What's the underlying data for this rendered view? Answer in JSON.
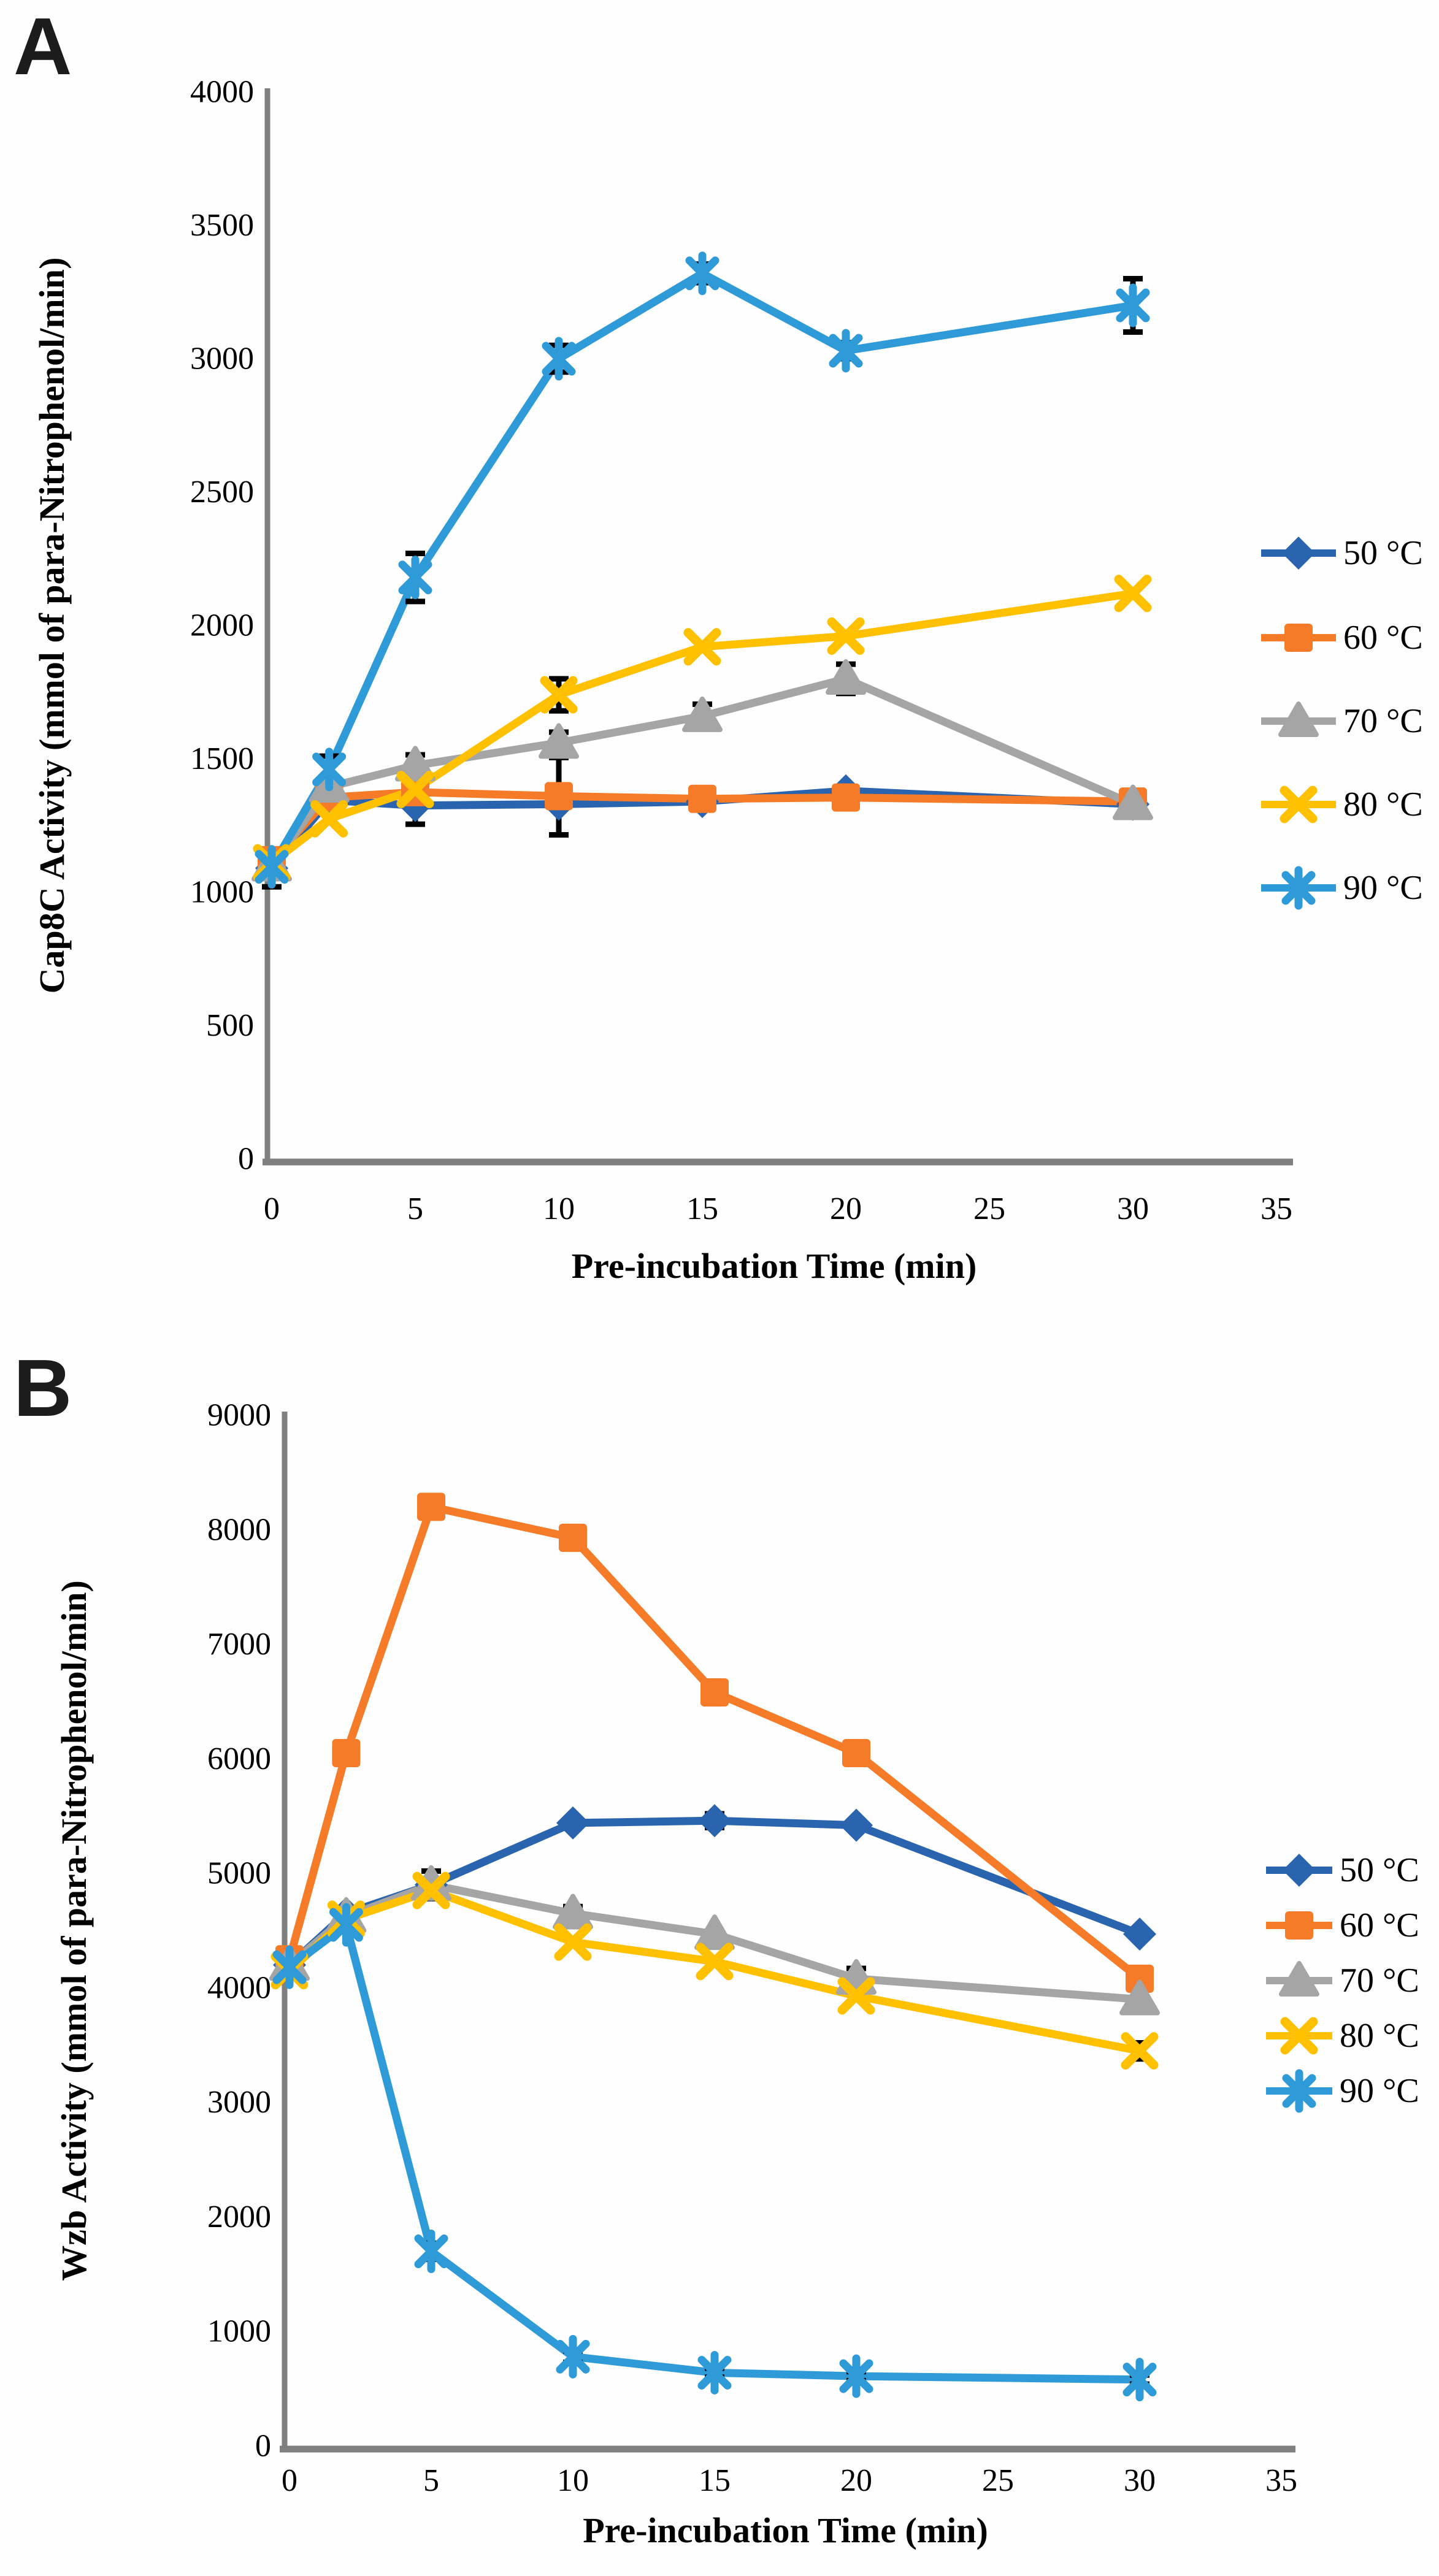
{
  "figure": {
    "background_color": "#fefefe",
    "axis_color": "#7f7f7f",
    "error_bar_color": "#000000",
    "text_color": "#000000"
  },
  "chart_data": [
    {
      "type": "line",
      "panel_label": "A",
      "xlabel": "Pre-incubation Time (min)",
      "ylabel": "Cap8C Activity (mmol of para-Nitrophenol/min)",
      "x": [
        0,
        2,
        5,
        10,
        15,
        20,
        30
      ],
      "xlim": [
        0,
        35
      ],
      "ylim": [
        0,
        4000
      ],
      "xtick_step": 5,
      "ytick_step": 500,
      "grid": false,
      "legend_position": "right",
      "legend_labels": [
        "50 °C",
        "60 °C",
        "70 °C",
        "80 °C",
        "90 °C"
      ],
      "series": [
        {
          "name": "50 °C",
          "color": "#2a64ae",
          "marker": "diamond",
          "values": [
            1090,
            1345,
            1325,
            1330,
            1340,
            1380,
            1330
          ],
          "err": [
            70,
            0,
            0,
            0,
            0,
            0,
            0
          ]
        },
        {
          "name": "60 °C",
          "color": "#f57b28",
          "marker": "square",
          "values": [
            1120,
            1355,
            1375,
            1360,
            1350,
            1355,
            1340
          ],
          "err": [
            0,
            0,
            0,
            145,
            0,
            0,
            0
          ]
        },
        {
          "name": "70 °C",
          "color": "#a5a5a5",
          "marker": "triangle",
          "values": [
            1100,
            1395,
            1475,
            1560,
            1660,
            1800,
            1330
          ],
          "err": [
            0,
            0,
            40,
            40,
            45,
            55,
            40
          ]
        },
        {
          "name": "80 °C",
          "color": "#ffc000",
          "marker": "x",
          "values": [
            1110,
            1275,
            1385,
            1740,
            1920,
            1960,
            2120
          ],
          "err": [
            0,
            0,
            130,
            60,
            0,
            0,
            0
          ]
        },
        {
          "name": "90 °C",
          "color": "#2e9bd8",
          "marker": "star",
          "values": [
            1095,
            1460,
            2180,
            3000,
            3320,
            3030,
            3200
          ],
          "err": [
            0,
            50,
            90,
            50,
            35,
            30,
            100
          ]
        }
      ]
    },
    {
      "type": "line",
      "panel_label": "B",
      "xlabel": "Pre-incubation Time (min)",
      "ylabel": "Wzb Activity (mmol of para-Nitrophenol/min)",
      "x": [
        0,
        2,
        5,
        10,
        15,
        20,
        30
      ],
      "xlim": [
        0,
        35
      ],
      "ylim": [
        0,
        9000
      ],
      "xtick_step": 5,
      "ytick_step": 1000,
      "grid": false,
      "legend_position": "right",
      "legend_labels": [
        "50 °C",
        "60 °C",
        "70 °C",
        "80 °C",
        "90 °C"
      ],
      "series": [
        {
          "name": "50 °C",
          "color": "#2a64ae",
          "marker": "diamond",
          "values": [
            4200,
            4650,
            4900,
            5440,
            5460,
            5420,
            4470
          ],
          "err": [
            0,
            0,
            120,
            0,
            60,
            0,
            0
          ]
        },
        {
          "name": "60 °C",
          "color": "#f57b28",
          "marker": "square",
          "values": [
            4250,
            6050,
            8200,
            7930,
            6580,
            6050,
            4080
          ],
          "err": [
            0,
            0,
            0,
            0,
            0,
            0,
            0
          ]
        },
        {
          "name": "70 °C",
          "color": "#a5a5a5",
          "marker": "triangle",
          "values": [
            4200,
            4620,
            4900,
            4650,
            4470,
            4080,
            3900
          ],
          "err": [
            0,
            0,
            0,
            60,
            0,
            90,
            0
          ]
        },
        {
          "name": "80 °C",
          "color": "#ffc000",
          "marker": "x",
          "values": [
            4150,
            4600,
            4850,
            4400,
            4230,
            3930,
            3450
          ],
          "err": [
            0,
            0,
            0,
            0,
            0,
            0,
            70
          ]
        },
        {
          "name": "90 °C",
          "color": "#2e9bd8",
          "marker": "star",
          "values": [
            4180,
            4550,
            1700,
            780,
            640,
            610,
            580
          ],
          "err": [
            0,
            0,
            70,
            50,
            40,
            40,
            40
          ]
        }
      ]
    }
  ]
}
